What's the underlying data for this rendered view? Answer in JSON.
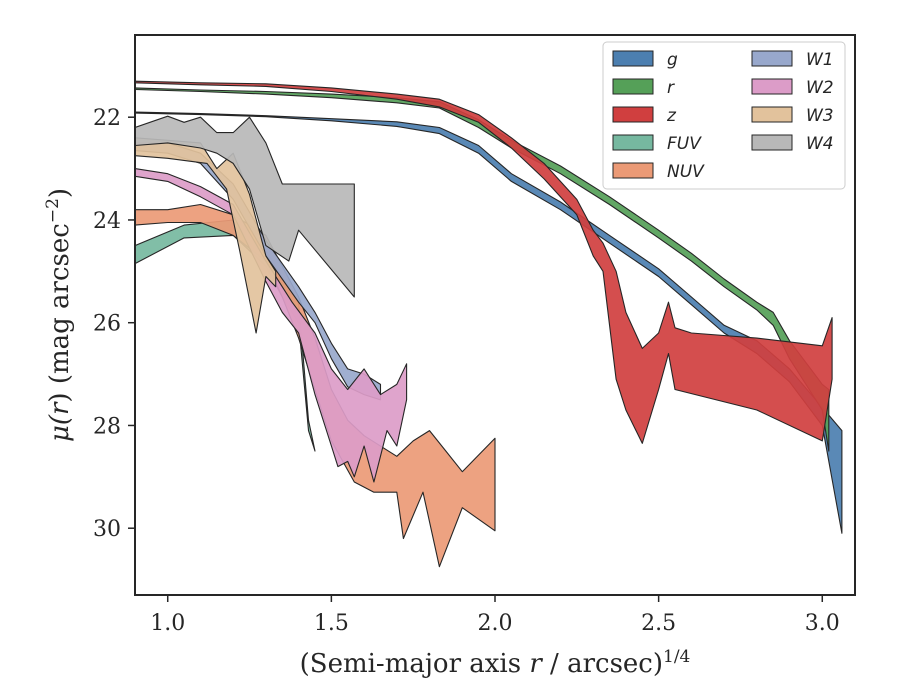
{
  "chart_data": {
    "type": "area",
    "xlabel": {
      "pre": "(Semi-major axis ",
      "var": "r",
      "post": " / arcsec)",
      "sup": "1/4"
    },
    "ylabel": {
      "pre": "μ(",
      "var": "r",
      "post": ") (mag arcsec",
      "sup": "−2",
      "close": ")"
    },
    "xlim": [
      0.9,
      3.1
    ],
    "ylim": [
      31.3,
      20.4
    ],
    "y_inverted": true,
    "xticks": [
      1.0,
      1.5,
      2.0,
      2.5,
      3.0
    ],
    "xtick_labels": [
      "1.0",
      "1.5",
      "2.0",
      "2.5",
      "3.0"
    ],
    "yticks": [
      22,
      24,
      26,
      28,
      30
    ],
    "ytick_labels": [
      "22",
      "24",
      "26",
      "28",
      "30"
    ],
    "legend_position": "upper-right",
    "legend_columns": 2,
    "series": [
      {
        "name": "g",
        "color": "#4c7fb0",
        "upper": [
          [
            0.9,
            21.9
          ],
          [
            1.1,
            21.93
          ],
          [
            1.3,
            21.97
          ],
          [
            1.5,
            22.03
          ],
          [
            1.7,
            22.09
          ],
          [
            1.83,
            22.2
          ],
          [
            1.95,
            22.55
          ],
          [
            2.05,
            23.1
          ],
          [
            2.2,
            23.65
          ],
          [
            2.35,
            24.3
          ],
          [
            2.5,
            24.95
          ],
          [
            2.6,
            25.5
          ],
          [
            2.7,
            26.05
          ],
          [
            2.8,
            26.35
          ],
          [
            2.9,
            26.9
          ],
          [
            3.0,
            27.65
          ],
          [
            3.06,
            28.1
          ]
        ],
        "lower": [
          [
            3.06,
            30.1
          ],
          [
            3.0,
            28.0
          ],
          [
            2.9,
            27.15
          ],
          [
            2.8,
            26.6
          ],
          [
            2.7,
            26.2
          ],
          [
            2.6,
            25.65
          ],
          [
            2.5,
            25.1
          ],
          [
            2.35,
            24.45
          ],
          [
            2.2,
            23.8
          ],
          [
            2.05,
            23.25
          ],
          [
            1.95,
            22.7
          ],
          [
            1.83,
            22.32
          ],
          [
            1.7,
            22.18
          ],
          [
            1.5,
            22.07
          ],
          [
            1.3,
            21.99
          ],
          [
            1.1,
            21.95
          ],
          [
            0.9,
            21.92
          ]
        ]
      },
      {
        "name": "r",
        "color": "#55a058",
        "upper": [
          [
            0.9,
            21.43
          ],
          [
            1.1,
            21.47
          ],
          [
            1.3,
            21.5
          ],
          [
            1.5,
            21.55
          ],
          [
            1.7,
            21.62
          ],
          [
            1.83,
            21.7
          ],
          [
            1.95,
            22.05
          ],
          [
            2.05,
            22.45
          ],
          [
            2.2,
            22.95
          ],
          [
            2.35,
            23.55
          ],
          [
            2.5,
            24.2
          ],
          [
            2.6,
            24.65
          ],
          [
            2.7,
            25.15
          ],
          [
            2.8,
            25.6
          ],
          [
            2.85,
            25.8
          ],
          [
            2.9,
            26.35
          ],
          [
            3.0,
            27.2
          ],
          [
            3.02,
            27.3
          ]
        ],
        "lower": [
          [
            3.02,
            28.5
          ],
          [
            3.0,
            27.7
          ],
          [
            2.9,
            26.7
          ],
          [
            2.85,
            26.05
          ],
          [
            2.8,
            25.75
          ],
          [
            2.7,
            25.3
          ],
          [
            2.6,
            24.8
          ],
          [
            2.5,
            24.35
          ],
          [
            2.35,
            23.7
          ],
          [
            2.2,
            23.1
          ],
          [
            2.05,
            22.6
          ],
          [
            1.95,
            22.2
          ],
          [
            1.83,
            21.82
          ],
          [
            1.7,
            21.72
          ],
          [
            1.5,
            21.62
          ],
          [
            1.3,
            21.55
          ],
          [
            1.1,
            21.5
          ],
          [
            0.9,
            21.46
          ]
        ]
      },
      {
        "name": "z",
        "color": "#d03f3f",
        "upper": [
          [
            0.9,
            21.3
          ],
          [
            1.1,
            21.33
          ],
          [
            1.3,
            21.35
          ],
          [
            1.5,
            21.43
          ],
          [
            1.7,
            21.55
          ],
          [
            1.83,
            21.65
          ],
          [
            1.95,
            21.95
          ],
          [
            2.05,
            22.4
          ],
          [
            2.15,
            22.9
          ],
          [
            2.25,
            23.6
          ],
          [
            2.3,
            24.2
          ],
          [
            2.33,
            24.45
          ],
          [
            2.37,
            25.0
          ],
          [
            2.4,
            25.8
          ],
          [
            2.45,
            26.5
          ],
          [
            2.5,
            26.2
          ],
          [
            2.53,
            25.6
          ],
          [
            2.55,
            26.1
          ],
          [
            2.6,
            26.2
          ],
          [
            2.8,
            26.3
          ],
          [
            3.0,
            26.45
          ],
          [
            3.03,
            25.9
          ]
        ],
        "lower": [
          [
            3.03,
            27.1
          ],
          [
            3.0,
            28.3
          ],
          [
            2.8,
            27.7
          ],
          [
            2.55,
            27.3
          ],
          [
            2.53,
            26.6
          ],
          [
            2.5,
            27.3
          ],
          [
            2.45,
            28.35
          ],
          [
            2.4,
            27.7
          ],
          [
            2.37,
            27.1
          ],
          [
            2.33,
            25.0
          ],
          [
            2.3,
            24.7
          ],
          [
            2.25,
            23.9
          ],
          [
            2.15,
            23.2
          ],
          [
            2.05,
            22.6
          ],
          [
            1.95,
            22.1
          ],
          [
            1.83,
            21.8
          ],
          [
            1.7,
            21.65
          ],
          [
            1.5,
            21.5
          ],
          [
            1.3,
            21.4
          ],
          [
            1.1,
            21.37
          ],
          [
            0.9,
            21.33
          ]
        ]
      },
      {
        "name": "FUV",
        "color": "#76b8a0",
        "upper": [
          [
            0.9,
            24.5
          ],
          [
            1.05,
            24.1
          ],
          [
            1.2,
            24.0
          ],
          [
            1.3,
            24.6
          ],
          [
            1.35,
            25.1
          ],
          [
            1.4,
            25.6
          ],
          [
            1.43,
            27.9
          ],
          [
            1.45,
            28.5
          ]
        ],
        "lower": [
          [
            1.45,
            28.5
          ],
          [
            1.43,
            28.1
          ],
          [
            1.4,
            26.0
          ],
          [
            1.35,
            25.5
          ],
          [
            1.3,
            24.9
          ],
          [
            1.2,
            24.3
          ],
          [
            1.05,
            24.35
          ],
          [
            0.9,
            24.85
          ]
        ]
      },
      {
        "name": "NUV",
        "color": "#eb9a76",
        "upper": [
          [
            0.9,
            23.8
          ],
          [
            1.0,
            23.8
          ],
          [
            1.1,
            23.7
          ],
          [
            1.2,
            23.9
          ],
          [
            1.3,
            24.3
          ],
          [
            1.35,
            24.9
          ],
          [
            1.4,
            25.5
          ],
          [
            1.45,
            26.3
          ],
          [
            1.5,
            27.3
          ],
          [
            1.55,
            27.9
          ],
          [
            1.6,
            28.2
          ],
          [
            1.7,
            28.6
          ],
          [
            1.75,
            28.3
          ],
          [
            1.8,
            28.1
          ],
          [
            1.85,
            28.5
          ],
          [
            1.9,
            28.9
          ],
          [
            2.0,
            28.25
          ]
        ],
        "lower": [
          [
            2.0,
            30.05
          ],
          [
            1.9,
            29.6
          ],
          [
            1.83,
            30.75
          ],
          [
            1.78,
            29.3
          ],
          [
            1.72,
            30.2
          ],
          [
            1.7,
            29.3
          ],
          [
            1.63,
            29.3
          ],
          [
            1.57,
            29.1
          ],
          [
            1.5,
            28.3
          ],
          [
            1.45,
            27.3
          ],
          [
            1.4,
            26.3
          ],
          [
            1.35,
            25.5
          ],
          [
            1.3,
            24.8
          ],
          [
            1.2,
            24.3
          ],
          [
            1.1,
            24.05
          ],
          [
            1.0,
            24.05
          ],
          [
            0.9,
            24.1
          ]
        ]
      },
      {
        "name": "W1",
        "color": "#98a8cc",
        "upper": [
          [
            0.9,
            22.5
          ],
          [
            1.0,
            22.5
          ],
          [
            1.1,
            22.7
          ],
          [
            1.2,
            23.3
          ],
          [
            1.3,
            24.4
          ],
          [
            1.4,
            25.3
          ],
          [
            1.45,
            25.8
          ],
          [
            1.5,
            26.4
          ],
          [
            1.55,
            26.9
          ],
          [
            1.6,
            27.0
          ],
          [
            1.65,
            27.2
          ]
        ],
        "lower": [
          [
            1.65,
            27.5
          ],
          [
            1.6,
            27.4
          ],
          [
            1.55,
            27.25
          ],
          [
            1.5,
            26.7
          ],
          [
            1.45,
            26.0
          ],
          [
            1.4,
            25.6
          ],
          [
            1.3,
            24.7
          ],
          [
            1.2,
            23.6
          ],
          [
            1.1,
            22.9
          ],
          [
            1.0,
            22.7
          ],
          [
            0.9,
            22.65
          ]
        ]
      },
      {
        "name": "W2",
        "color": "#dc9cc8",
        "upper": [
          [
            0.9,
            23.0
          ],
          [
            1.0,
            23.1
          ],
          [
            1.1,
            23.35
          ],
          [
            1.2,
            23.7
          ],
          [
            1.3,
            24.8
          ],
          [
            1.38,
            25.6
          ],
          [
            1.45,
            26.2
          ],
          [
            1.5,
            26.9
          ],
          [
            1.55,
            27.3
          ],
          [
            1.6,
            26.9
          ],
          [
            1.65,
            27.4
          ],
          [
            1.7,
            27.2
          ],
          [
            1.73,
            26.8
          ]
        ],
        "lower": [
          [
            1.73,
            27.5
          ],
          [
            1.7,
            28.4
          ],
          [
            1.67,
            28.1
          ],
          [
            1.63,
            29.1
          ],
          [
            1.6,
            28.4
          ],
          [
            1.57,
            29.0
          ],
          [
            1.55,
            28.7
          ],
          [
            1.52,
            28.8
          ],
          [
            1.5,
            28.4
          ],
          [
            1.45,
            27.4
          ],
          [
            1.4,
            26.2
          ],
          [
            1.35,
            25.8
          ],
          [
            1.3,
            25.2
          ],
          [
            1.2,
            23.9
          ],
          [
            1.1,
            23.55
          ],
          [
            1.0,
            23.25
          ],
          [
            0.9,
            23.15
          ]
        ]
      },
      {
        "name": "W3",
        "color": "#e2c29c",
        "upper": [
          [
            0.9,
            22.4
          ],
          [
            1.0,
            22.45
          ],
          [
            1.1,
            22.5
          ],
          [
            1.15,
            23.0
          ],
          [
            1.2,
            22.7
          ],
          [
            1.25,
            23.5
          ],
          [
            1.3,
            24.7
          ],
          [
            1.33,
            25.0
          ]
        ],
        "lower": [
          [
            1.33,
            25.3
          ],
          [
            1.3,
            25.1
          ],
          [
            1.27,
            26.2
          ],
          [
            1.22,
            24.6
          ],
          [
            1.18,
            23.4
          ],
          [
            1.12,
            22.9
          ],
          [
            1.0,
            22.8
          ],
          [
            0.9,
            22.75
          ]
        ]
      },
      {
        "name": "W4",
        "color": "#b8b8b8",
        "upper": [
          [
            0.9,
            22.2
          ],
          [
            1.0,
            21.98
          ],
          [
            1.05,
            22.1
          ],
          [
            1.1,
            22.0
          ],
          [
            1.15,
            22.3
          ],
          [
            1.2,
            22.3
          ],
          [
            1.25,
            22.0
          ],
          [
            1.3,
            22.5
          ],
          [
            1.35,
            23.3
          ],
          [
            1.57,
            23.3
          ]
        ],
        "lower": [
          [
            1.57,
            25.5
          ],
          [
            1.4,
            24.2
          ],
          [
            1.37,
            24.8
          ],
          [
            1.3,
            24.5
          ],
          [
            1.25,
            23.4
          ],
          [
            1.2,
            22.9
          ],
          [
            1.15,
            22.7
          ],
          [
            1.1,
            22.6
          ],
          [
            1.0,
            22.5
          ],
          [
            0.9,
            22.55
          ]
        ]
      }
    ]
  }
}
